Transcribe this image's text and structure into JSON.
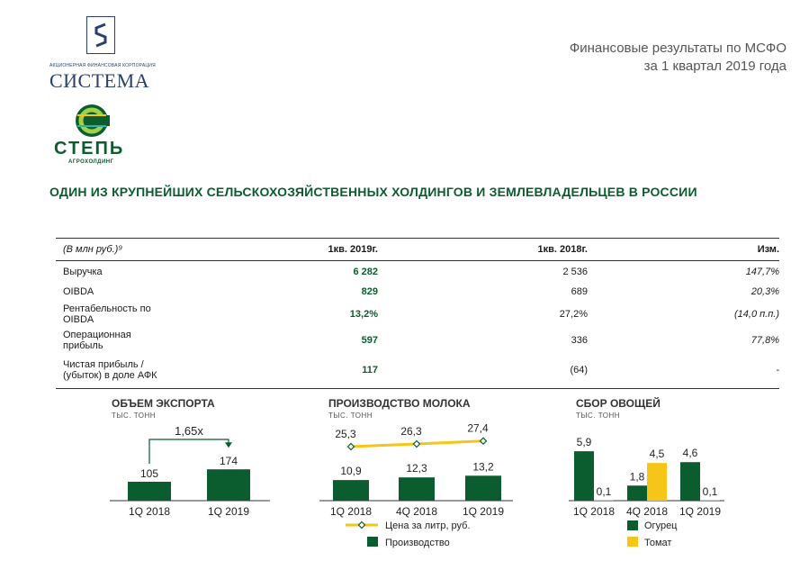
{
  "header": {
    "company_sub": "АКЦИОНЕРНАЯ ФИНАНСОВАЯ КОРПОРАЦИЯ",
    "company_name": "СИСТЕМА",
    "brand_name": "СТЕПЬ",
    "brand_sub": "АГРОХОЛДИНГ",
    "report_title_line1": "Финансовые результаты по МСФО",
    "report_title_line2": "за 1 квартал 2019 года",
    "headline": "ОДИН ИЗ КРУПНЕЙШИХ СЕЛЬСКОХОЗЯЙСТВЕННЫХ ХОЛДИНГОВ И ЗЕМЛЕВЛАДЕЛЬЦЕВ В РОССИИ"
  },
  "colors": {
    "green": "#0b5c2e",
    "yellow": "#f5c518",
    "navy": "#2a3f6e"
  },
  "table": {
    "columns": [
      "(В млн руб.)⁹",
      "1кв. 2019г.",
      "1кв. 2018г.",
      "Изм."
    ],
    "rows": [
      {
        "label": "Выручка",
        "q1_2019": "6 282",
        "q1_2018": "2 536",
        "change": "147,7%"
      },
      {
        "label": "OIBDA",
        "q1_2019": "829",
        "q1_2018": "689",
        "change": "20,3%"
      },
      {
        "label": "Рентабельность по OIBDA",
        "q1_2019": "13,2%",
        "q1_2018": "27,2%",
        "change": "(14,0 п.п.)"
      },
      {
        "label": "Операционная прибыль",
        "q1_2019": "597",
        "q1_2018": "336",
        "change": "77,8%"
      },
      {
        "label": "Чистая прибыль / (убыток) в доле АФК",
        "q1_2019": "117",
        "q1_2018": "(64)",
        "change": "-"
      }
    ]
  },
  "chart_data": [
    {
      "type": "bar",
      "title": "ОБЪЕМ ЭКСПОРТА",
      "unit": "ТЫС. ТОНН",
      "categories": [
        "1Q 2018",
        "1Q 2019"
      ],
      "values": [
        105,
        174
      ],
      "labels": [
        "105",
        "174"
      ],
      "annotation": "1,65x"
    },
    {
      "type": "bar",
      "title": "ПРОИЗВОДСТВО МОЛОКА",
      "unit": "ТЫС. ТОНН",
      "categories": [
        "1Q 2018",
        "4Q 2018",
        "1Q 2019"
      ],
      "series": [
        {
          "name": "Производство",
          "values": [
            10.9,
            12.3,
            13.2
          ],
          "labels": [
            "10,9",
            "12,3",
            "13,2"
          ]
        },
        {
          "name": "Цена за литр, руб.",
          "values": [
            25.3,
            26.3,
            27.4
          ],
          "labels": [
            "25,3",
            "26,3",
            "27,4"
          ]
        }
      ]
    },
    {
      "type": "bar",
      "title": "СБОР ОВОЩЕЙ",
      "unit": "ТЫС. ТОНН",
      "categories": [
        "1Q 2018",
        "4Q 2018",
        "1Q 2019"
      ],
      "series": [
        {
          "name": "Огурец",
          "values": [
            5.9,
            1.8,
            4.6
          ],
          "labels": [
            "5,9",
            "1,8",
            "4,6"
          ]
        },
        {
          "name": "Томат",
          "values": [
            0.1,
            4.5,
            0.1
          ],
          "labels": [
            "0,1",
            "4,5",
            "0,1"
          ]
        }
      ]
    }
  ]
}
